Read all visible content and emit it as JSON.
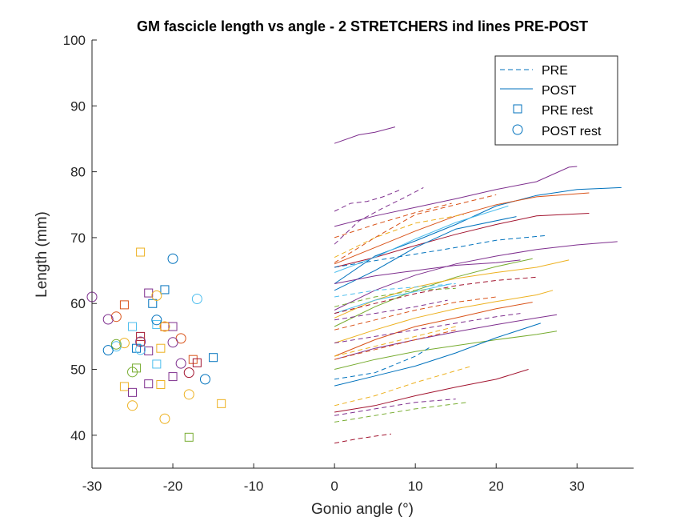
{
  "colors": {
    "blue": "#0072BD",
    "orange": "#D95319",
    "yellow": "#EDB120",
    "purple": "#7E2F8E",
    "green": "#77AC30",
    "cyan": "#4DBEEE",
    "red": "#A2142F"
  },
  "chart_data": {
    "type": "line",
    "title": "GM fascicle length vs angle - 2 STRETCHERS ind lines PRE-POST",
    "xlabel": "Gonio angle (°)",
    "ylabel": "Length (mm)",
    "xlim": [
      -30,
      37
    ],
    "ylim": [
      35,
      100
    ],
    "xticks": [
      -30,
      -20,
      -10,
      0,
      10,
      20,
      30
    ],
    "yticks": [
      40,
      50,
      60,
      70,
      80,
      90,
      100
    ],
    "xtick_labels": [
      "-30",
      "-20",
      "-10",
      "0",
      "10",
      "20",
      "30"
    ],
    "ytick_labels": [
      "40",
      "50",
      "60",
      "70",
      "80",
      "90",
      "100"
    ],
    "grid": false,
    "legend": {
      "placement": "top-right",
      "entries": [
        {
          "label": "PRE",
          "style": "dashed"
        },
        {
          "label": "POST",
          "style": "solid"
        },
        {
          "label": "PRE rest",
          "style": "square"
        },
        {
          "label": "POST rest",
          "style": "circle"
        }
      ]
    },
    "series": [
      {
        "group": "POST",
        "color": "purple",
        "x": [
          0,
          3,
          5,
          7.5
        ],
        "y": [
          84.3,
          85.6,
          86.0,
          86.8
        ]
      },
      {
        "group": "POST",
        "color": "purple",
        "x": [
          0,
          5,
          10,
          15,
          20,
          25,
          29,
          30
        ],
        "y": [
          71.7,
          73.3,
          74.6,
          75.9,
          77.3,
          78.5,
          80.7,
          80.8
        ]
      },
      {
        "group": "POST",
        "color": "blue",
        "x": [
          0,
          5,
          10,
          15,
          20,
          25,
          30,
          35.5
        ],
        "y": [
          63.0,
          67.2,
          69.5,
          72.0,
          74.8,
          76.4,
          77.3,
          77.6
        ]
      },
      {
        "group": "POST",
        "color": "orange",
        "x": [
          0,
          5,
          10,
          15,
          20,
          25,
          31.5
        ],
        "y": [
          66.0,
          68.5,
          71.0,
          73.3,
          75.0,
          76.2,
          76.8
        ]
      },
      {
        "group": "POST",
        "color": "red",
        "x": [
          0,
          5,
          10,
          15,
          20,
          25,
          31.5
        ],
        "y": [
          65.5,
          67.0,
          68.8,
          70.5,
          72.0,
          73.3,
          73.7
        ]
      },
      {
        "group": "POST",
        "color": "cyan",
        "x": [
          0,
          5,
          10,
          15,
          21.5
        ],
        "y": [
          64.7,
          67.0,
          69.8,
          72.3,
          74.8
        ]
      },
      {
        "group": "POST",
        "color": "blue",
        "x": [
          0,
          5,
          10,
          15,
          22.5
        ],
        "y": [
          62.0,
          65.0,
          68.5,
          71.3,
          73.2
        ]
      },
      {
        "group": "POST",
        "color": "purple",
        "x": [
          0,
          5,
          10,
          15,
          20,
          25,
          30,
          35
        ],
        "y": [
          59.0,
          62.0,
          64.3,
          66.0,
          67.2,
          68.2,
          68.9,
          69.4
        ]
      },
      {
        "group": "POST",
        "color": "green",
        "x": [
          0,
          5,
          10,
          15,
          20,
          24.5
        ],
        "y": [
          56.5,
          59.5,
          62.0,
          64.0,
          65.6,
          66.8
        ]
      },
      {
        "group": "POST",
        "color": "yellow",
        "x": [
          0,
          5,
          10,
          15,
          20,
          25,
          29
        ],
        "y": [
          57.8,
          60.5,
          62.5,
          63.8,
          64.7,
          65.5,
          66.6
        ]
      },
      {
        "group": "POST",
        "color": "cyan",
        "x": [
          0,
          5,
          10,
          14.5
        ],
        "y": [
          58.5,
          60.5,
          61.8,
          63.0
        ]
      },
      {
        "group": "POST",
        "color": "yellow",
        "x": [
          0,
          5,
          10,
          15,
          20,
          25,
          27
        ],
        "y": [
          54.0,
          56.0,
          57.8,
          59.2,
          60.3,
          61.3,
          62.0
        ]
      },
      {
        "group": "POST",
        "color": "orange",
        "x": [
          0,
          5,
          10,
          15,
          20,
          24.5
        ],
        "y": [
          52.0,
          54.5,
          56.5,
          57.8,
          59.2,
          60.2
        ]
      },
      {
        "group": "POST",
        "color": "purple",
        "x": [
          0,
          5,
          10,
          15,
          20,
          25,
          27.5
        ],
        "y": [
          51.5,
          53.2,
          54.5,
          55.7,
          56.8,
          57.8,
          58.3
        ]
      },
      {
        "group": "POST",
        "color": "green",
        "x": [
          0,
          5,
          10,
          15,
          20,
          25,
          27.5
        ],
        "y": [
          50.0,
          51.5,
          52.7,
          53.6,
          54.5,
          55.3,
          55.8
        ]
      },
      {
        "group": "POST",
        "color": "blue",
        "x": [
          0,
          5,
          10,
          15,
          20,
          25.5
        ],
        "y": [
          47.5,
          49.0,
          50.5,
          52.5,
          54.8,
          57.0
        ]
      },
      {
        "group": "POST",
        "color": "red",
        "x": [
          0,
          5,
          10,
          15,
          20,
          24
        ],
        "y": [
          43.5,
          44.5,
          46.0,
          47.3,
          48.5,
          50.0
        ]
      },
      {
        "group": "POST",
        "color": "purple",
        "x": [
          0,
          5,
          10,
          15,
          20,
          23
        ],
        "y": [
          63.0,
          64.2,
          65.0,
          65.8,
          66.2,
          66.6
        ]
      },
      {
        "group": "PRE",
        "color": "purple",
        "x": [
          0,
          2,
          4,
          6,
          8
        ],
        "y": [
          74.0,
          75.2,
          75.5,
          76.2,
          77.2
        ]
      },
      {
        "group": "PRE",
        "color": "purple",
        "x": [
          0,
          3,
          6,
          9,
          11
        ],
        "y": [
          69.0,
          72.5,
          74.5,
          76.3,
          77.6
        ]
      },
      {
        "group": "PRE",
        "color": "orange",
        "x": [
          0,
          5,
          10,
          14.5
        ],
        "y": [
          70.0,
          72.0,
          73.8,
          75.2
        ]
      },
      {
        "group": "PRE",
        "color": "yellow",
        "x": [
          0,
          5,
          10,
          16
        ],
        "y": [
          67.0,
          70.0,
          72.2,
          73.5
        ]
      },
      {
        "group": "PRE",
        "color": "blue",
        "x": [
          0,
          5,
          10,
          15,
          20,
          26
        ],
        "y": [
          65.5,
          66.5,
          67.5,
          68.5,
          69.6,
          70.3
        ]
      },
      {
        "group": "PRE",
        "color": "orange",
        "x": [
          0,
          5,
          10,
          20
        ],
        "y": [
          66.2,
          70.0,
          73.5,
          76.5
        ]
      },
      {
        "group": "PRE",
        "color": "red",
        "x": [
          0,
          5,
          10,
          15,
          20,
          25
        ],
        "y": [
          58.5,
          60.0,
          61.5,
          62.7,
          63.5,
          64.0
        ]
      },
      {
        "group": "PRE",
        "color": "purple",
        "x": [
          0,
          5,
          10,
          14
        ],
        "y": [
          57.5,
          58.5,
          59.5,
          60.5
        ]
      },
      {
        "group": "PRE",
        "color": "cyan",
        "x": [
          0,
          5,
          10,
          15
        ],
        "y": [
          61.0,
          62.0,
          62.5,
          63.0
        ]
      },
      {
        "group": "PRE",
        "color": "green",
        "x": [
          0,
          5,
          10,
          15
        ],
        "y": [
          59.5,
          61.0,
          62.0,
          62.3
        ]
      },
      {
        "group": "PRE",
        "color": "orange",
        "x": [
          0,
          5,
          10,
          15,
          20
        ],
        "y": [
          56.0,
          57.5,
          59.0,
          60.2,
          61.0
        ]
      },
      {
        "group": "PRE",
        "color": "yellow",
        "x": [
          0,
          5,
          10,
          15
        ],
        "y": [
          52.0,
          53.5,
          55.0,
          56.5
        ]
      },
      {
        "group": "PRE",
        "color": "purple",
        "x": [
          0,
          5,
          10,
          15,
          20,
          23
        ],
        "y": [
          54.0,
          55.0,
          56.0,
          57.0,
          58.0,
          58.5
        ]
      },
      {
        "group": "PRE",
        "color": "orange",
        "x": [
          0,
          5,
          10,
          15
        ],
        "y": [
          51.5,
          53.0,
          54.5,
          56.0
        ]
      },
      {
        "group": "PRE",
        "color": "blue",
        "x": [
          0,
          5,
          10,
          12
        ],
        "y": [
          48.5,
          49.5,
          52.0,
          53.5
        ]
      },
      {
        "group": "PRE",
        "color": "yellow",
        "x": [
          0,
          5,
          10,
          17
        ],
        "y": [
          44.5,
          46.0,
          48.0,
          50.5
        ]
      },
      {
        "group": "PRE",
        "color": "purple",
        "x": [
          0,
          5,
          10,
          15
        ],
        "y": [
          43.0,
          44.0,
          45.0,
          45.5
        ]
      },
      {
        "group": "PRE",
        "color": "green",
        "x": [
          0,
          5,
          10,
          16.5
        ],
        "y": [
          42.0,
          43.0,
          44.0,
          45.0
        ]
      },
      {
        "group": "PRE",
        "color": "red",
        "x": [
          0,
          3,
          7
        ],
        "y": [
          38.8,
          39.5,
          40.2
        ]
      }
    ],
    "pre_rest": [
      {
        "x": -24,
        "y": 67.8,
        "color": "yellow"
      },
      {
        "x": -21,
        "y": 62.1,
        "color": "blue"
      },
      {
        "x": -23,
        "y": 61.6,
        "color": "purple"
      },
      {
        "x": -26,
        "y": 59.8,
        "color": "orange"
      },
      {
        "x": -22.5,
        "y": 60.0,
        "color": "blue"
      },
      {
        "x": -25,
        "y": 56.5,
        "color": "cyan"
      },
      {
        "x": -22,
        "y": 56.8,
        "color": "cyan"
      },
      {
        "x": -21,
        "y": 56.5,
        "color": "orange"
      },
      {
        "x": -20,
        "y": 56.5,
        "color": "purple"
      },
      {
        "x": -24,
        "y": 55.0,
        "color": "red"
      },
      {
        "x": -24,
        "y": 54.2,
        "color": "orange"
      },
      {
        "x": -24.5,
        "y": 53.2,
        "color": "blue"
      },
      {
        "x": -23,
        "y": 52.8,
        "color": "purple"
      },
      {
        "x": -21.5,
        "y": 53.2,
        "color": "yellow"
      },
      {
        "x": -15,
        "y": 51.8,
        "color": "blue"
      },
      {
        "x": -17.5,
        "y": 51.5,
        "color": "orange"
      },
      {
        "x": -17,
        "y": 51.0,
        "color": "red"
      },
      {
        "x": -22,
        "y": 50.8,
        "color": "cyan"
      },
      {
        "x": -24.5,
        "y": 50.2,
        "color": "green"
      },
      {
        "x": -20,
        "y": 48.9,
        "color": "purple"
      },
      {
        "x": -26,
        "y": 47.4,
        "color": "yellow"
      },
      {
        "x": -23,
        "y": 47.8,
        "color": "purple"
      },
      {
        "x": -21.5,
        "y": 47.7,
        "color": "yellow"
      },
      {
        "x": -25,
        "y": 46.5,
        "color": "purple"
      },
      {
        "x": -14,
        "y": 44.8,
        "color": "yellow"
      },
      {
        "x": -18,
        "y": 39.7,
        "color": "green"
      }
    ],
    "post_rest": [
      {
        "x": -20,
        "y": 66.8,
        "color": "blue"
      },
      {
        "x": -22,
        "y": 61.2,
        "color": "yellow"
      },
      {
        "x": -30,
        "y": 61.0,
        "color": "purple"
      },
      {
        "x": -17,
        "y": 60.7,
        "color": "cyan"
      },
      {
        "x": -27,
        "y": 58.0,
        "color": "orange"
      },
      {
        "x": -28,
        "y": 57.6,
        "color": "purple"
      },
      {
        "x": -22,
        "y": 57.5,
        "color": "blue"
      },
      {
        "x": -21,
        "y": 56.5,
        "color": "yellow"
      },
      {
        "x": -19,
        "y": 54.7,
        "color": "orange"
      },
      {
        "x": -24,
        "y": 54.2,
        "color": "purple"
      },
      {
        "x": -26,
        "y": 54.0,
        "color": "yellow"
      },
      {
        "x": -20,
        "y": 54.1,
        "color": "purple"
      },
      {
        "x": -27,
        "y": 53.5,
        "color": "cyan"
      },
      {
        "x": -27,
        "y": 53.8,
        "color": "green"
      },
      {
        "x": -28,
        "y": 52.9,
        "color": "blue"
      },
      {
        "x": -24,
        "y": 53.0,
        "color": "cyan"
      },
      {
        "x": -19,
        "y": 50.9,
        "color": "purple"
      },
      {
        "x": -25,
        "y": 49.6,
        "color": "green"
      },
      {
        "x": -18,
        "y": 49.5,
        "color": "red"
      },
      {
        "x": -16,
        "y": 48.5,
        "color": "blue"
      },
      {
        "x": -18,
        "y": 46.2,
        "color": "yellow"
      },
      {
        "x": -25,
        "y": 44.5,
        "color": "yellow"
      },
      {
        "x": -21,
        "y": 42.5,
        "color": "yellow"
      }
    ]
  }
}
